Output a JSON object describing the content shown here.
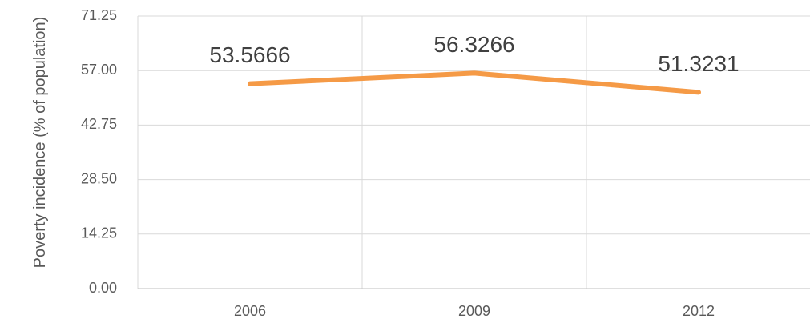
{
  "chart_data": {
    "type": "line",
    "y_label": "Poverty incidence (% of population)",
    "categories": [
      "2006",
      "2009",
      "2012"
    ],
    "series": [
      {
        "name": "Poverty incidence",
        "color": "#f59a46",
        "values": [
          53.5666,
          56.3266,
          51.3231
        ]
      }
    ],
    "ylim": [
      0,
      71.25
    ],
    "yticks": [
      {
        "value": 0,
        "label": "0.00"
      },
      14.25,
      {
        "value": 28.5,
        "label": "28.50"
      },
      42.75,
      {
        "value": 57,
        "label": "57.00"
      },
      71.25
    ],
    "grid": true
  }
}
